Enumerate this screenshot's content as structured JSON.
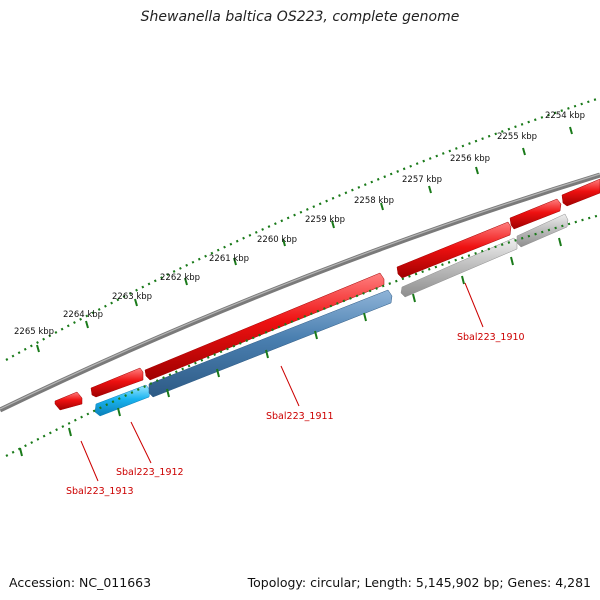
{
  "title": "Shewanella baltica OS223, complete genome",
  "scale_labels": [
    "2265 kbp",
    "2264 kbp",
    "2263 kbp",
    "2262 kbp",
    "2261 kbp",
    "2260 kbp",
    "2259 kbp",
    "2258 kbp",
    "2257 kbp",
    "2256 kbp",
    "2255 kbp",
    "2254 kbp"
  ],
  "genes": [
    "Sbal223_1910",
    "Sbal223_1911",
    "Sbal223_1912",
    "Sbal223_1913"
  ],
  "colors": {
    "backbone": "#7a7a7a",
    "forward_gene": "#ee1111",
    "reverse_gene_1911": "#4a7fb0",
    "reverse_gene_1912": "#1ab4f0",
    "reverse_gene_1910": "#b8b8b8",
    "ticks": "#1a7a1a",
    "gene_label": "#cc0000"
  },
  "footer": {
    "accession": "Accession: NC_011663",
    "summary": "Topology: circular; Length: 5,145,902 bp; Genes: 4,281"
  }
}
